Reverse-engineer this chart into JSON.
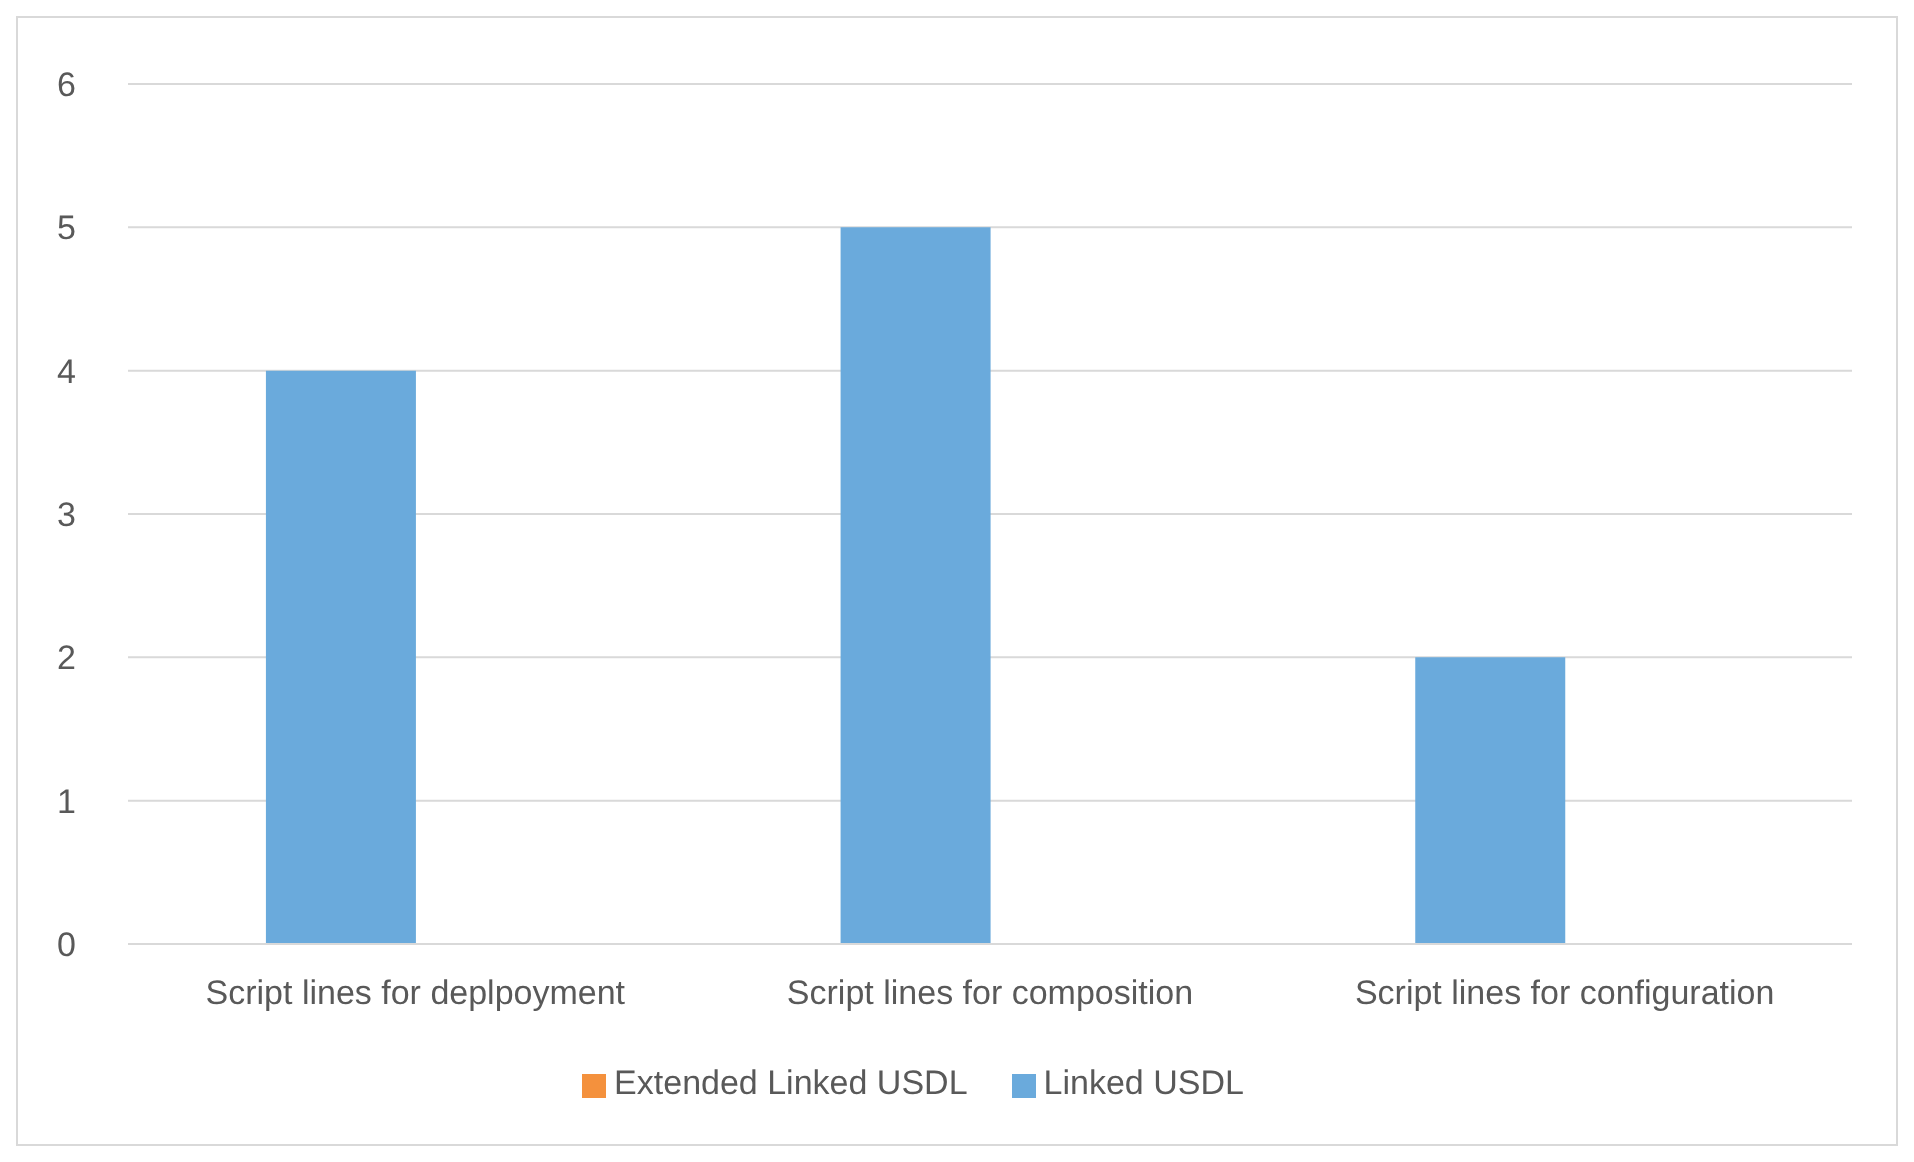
{
  "chart_data": {
    "type": "bar",
    "categories": [
      "Script lines for deplpoyment",
      "Script lines for composition",
      "Script lines for configuration"
    ],
    "series": [
      {
        "name": "Linked USDL",
        "color": "#6aaadc",
        "values": [
          4,
          5,
          2
        ]
      },
      {
        "name": "Extended Linked USDL",
        "color": "#f4913d",
        "values": [
          0,
          0,
          0
        ]
      }
    ],
    "ylim": [
      0,
      6
    ],
    "yticks": [
      0,
      1,
      2,
      3,
      4,
      5,
      6
    ],
    "grid": "y",
    "legend": "bottom"
  }
}
